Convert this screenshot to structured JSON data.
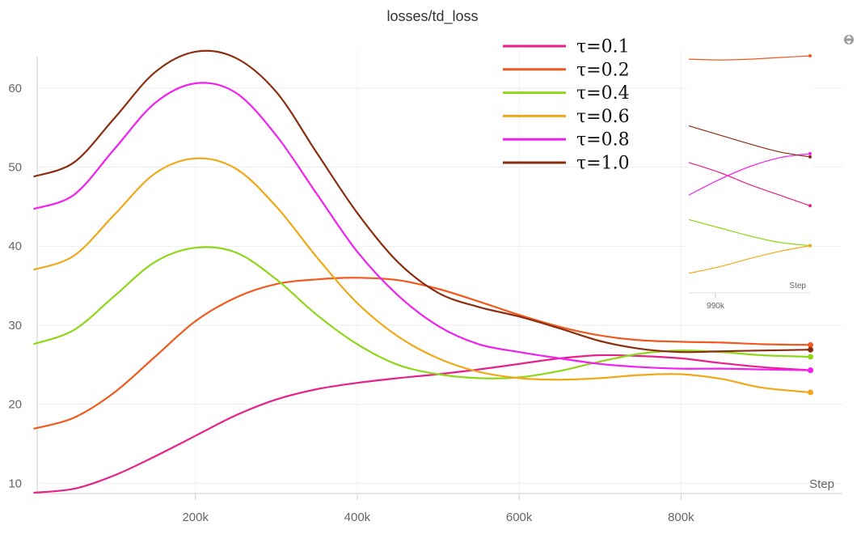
{
  "chart_data": {
    "type": "line",
    "title": "losses/td_loss",
    "xlabel": "Step",
    "ylabel": "",
    "xlim": [
      0,
      1000000
    ],
    "ylim": [
      8.7,
      65
    ],
    "x_ticks": [
      200000,
      400000,
      600000,
      800000
    ],
    "x_tick_labels": [
      "200k",
      "400k",
      "600k",
      "800k"
    ],
    "y_ticks": [
      10,
      20,
      30,
      40,
      50,
      60
    ],
    "y_tick_labels": [
      "10",
      "20",
      "30",
      "40",
      "50",
      "60"
    ],
    "grid": true,
    "legend_position": "top-right",
    "series": [
      {
        "name": "τ=0.1",
        "color": "#e6218a",
        "x": [
          0,
          50000,
          100000,
          150000,
          200000,
          250000,
          300000,
          350000,
          400000,
          450000,
          500000,
          550000,
          600000,
          650000,
          700000,
          750000,
          800000,
          850000,
          900000,
          960000
        ],
        "y": [
          8.8,
          9.3,
          11.0,
          13.4,
          16.0,
          18.6,
          20.6,
          21.9,
          22.7,
          23.3,
          23.8,
          24.4,
          25.1,
          25.8,
          26.2,
          26.1,
          25.8,
          25.2,
          24.7,
          24.3
        ]
      },
      {
        "name": "τ=0.2",
        "color": "#f05a1e",
        "x": [
          0,
          50000,
          100000,
          150000,
          200000,
          250000,
          300000,
          350000,
          400000,
          450000,
          500000,
          550000,
          600000,
          650000,
          700000,
          750000,
          800000,
          850000,
          900000,
          960000
        ],
        "y": [
          16.9,
          18.3,
          21.5,
          26.0,
          30.5,
          33.5,
          35.2,
          35.8,
          36.0,
          35.7,
          34.6,
          33.0,
          31.3,
          29.8,
          28.7,
          28.1,
          27.9,
          27.8,
          27.6,
          27.5
        ]
      },
      {
        "name": "τ=0.4",
        "color": "#8fd619",
        "x": [
          0,
          50000,
          100000,
          150000,
          200000,
          250000,
          300000,
          350000,
          400000,
          450000,
          500000,
          550000,
          600000,
          650000,
          700000,
          750000,
          800000,
          850000,
          900000,
          960000
        ],
        "y": [
          27.6,
          29.4,
          33.7,
          38.0,
          39.8,
          39.2,
          35.8,
          31.3,
          27.6,
          25.0,
          23.8,
          23.3,
          23.4,
          24.2,
          25.4,
          26.4,
          26.8,
          26.6,
          26.2,
          26.0
        ]
      },
      {
        "name": "τ=0.6",
        "color": "#f0a818",
        "x": [
          0,
          50000,
          100000,
          150000,
          200000,
          250000,
          300000,
          350000,
          400000,
          450000,
          500000,
          550000,
          600000,
          650000,
          700000,
          750000,
          800000,
          850000,
          900000,
          960000
        ],
        "y": [
          37.0,
          38.8,
          44.0,
          49.2,
          51.1,
          49.8,
          45.0,
          38.6,
          32.8,
          28.6,
          25.8,
          24.1,
          23.3,
          23.1,
          23.3,
          23.7,
          23.8,
          23.2,
          22.1,
          21.5
        ]
      },
      {
        "name": "τ=0.8",
        "color": "#f021f0",
        "x": [
          0,
          50000,
          100000,
          150000,
          200000,
          250000,
          300000,
          350000,
          400000,
          450000,
          500000,
          550000,
          600000,
          650000,
          700000,
          750000,
          800000,
          850000,
          900000,
          960000
        ],
        "y": [
          44.7,
          46.5,
          52.3,
          58.1,
          60.6,
          59.4,
          54.0,
          46.6,
          39.3,
          33.8,
          29.9,
          27.6,
          26.6,
          25.8,
          25.1,
          24.7,
          24.5,
          24.5,
          24.4,
          24.3
        ]
      },
      {
        "name": "τ=1.0",
        "color": "#8b2e10",
        "x": [
          0,
          50000,
          100000,
          150000,
          200000,
          250000,
          300000,
          350000,
          400000,
          450000,
          500000,
          550000,
          600000,
          650000,
          700000,
          750000,
          800000,
          850000,
          900000,
          960000
        ],
        "y": [
          48.8,
          50.6,
          56.2,
          62.0,
          64.6,
          63.8,
          59.5,
          51.8,
          44.2,
          38.0,
          34.1,
          32.3,
          31.1,
          29.6,
          28.0,
          27.0,
          26.6,
          26.7,
          26.8,
          26.9
        ]
      }
    ],
    "inset": {
      "xlabel": "Step",
      "x_tick_label": "990k",
      "series": [
        {
          "name": "τ=0.1",
          "color": "#e6218a",
          "y": [
            52.0,
            50.8,
            49.3,
            48.0,
            46.7
          ]
        },
        {
          "name": "τ=0.2",
          "color": "#f05a1e",
          "y": [
            64.7,
            64.6,
            64.7,
            64.9,
            65.1
          ]
        },
        {
          "name": "τ=0.4",
          "color": "#8fd619",
          "y": [
            45.0,
            44.0,
            43.0,
            42.2,
            41.8
          ]
        },
        {
          "name": "τ=0.6",
          "color": "#f0a818",
          "y": [
            38.4,
            39.2,
            40.2,
            41.1,
            41.8
          ]
        },
        {
          "name": "τ=0.8",
          "color": "#f021f0",
          "y": [
            48.0,
            49.9,
            51.5,
            52.6,
            53.1
          ]
        },
        {
          "name": "τ=1.0",
          "color": "#8b2e10",
          "y": [
            56.5,
            55.4,
            54.3,
            53.3,
            52.7
          ]
        }
      ]
    }
  }
}
